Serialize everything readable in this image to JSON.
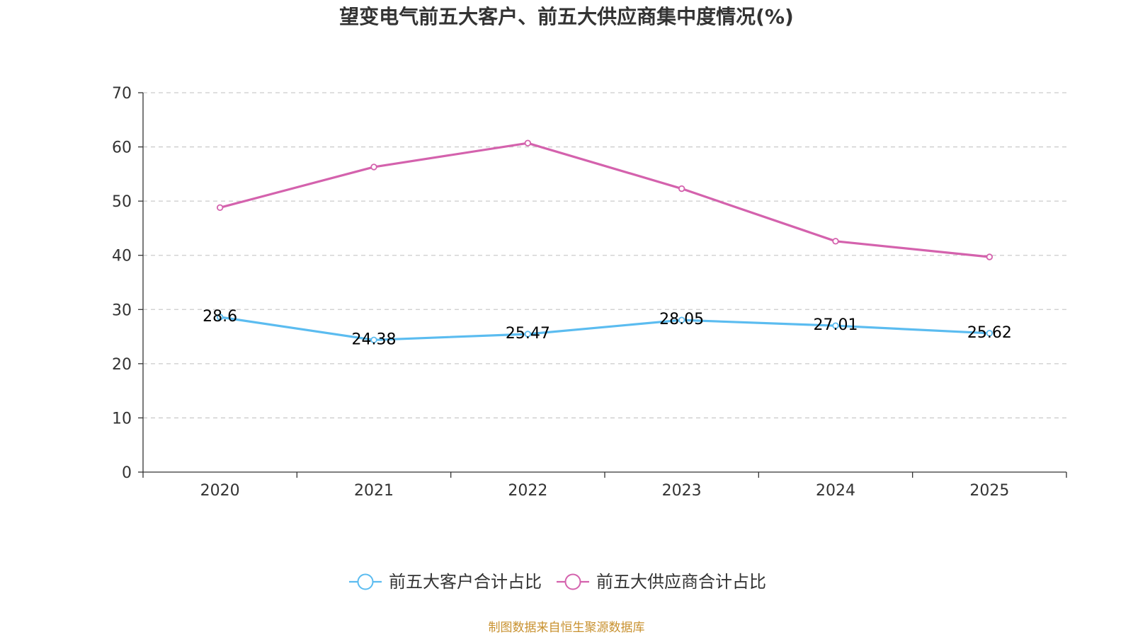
{
  "chart_data": {
    "type": "line",
    "title": "望变电气前五大客户、前五大供应商集中度情况(%)",
    "categories": [
      "2020",
      "2021",
      "2022",
      "2023",
      "2024",
      "2025"
    ],
    "ylim": [
      0,
      70
    ],
    "yticks": [
      "0",
      "10",
      "20",
      "30",
      "40",
      "50",
      "60",
      "70"
    ],
    "grid": true,
    "legend_position": "bottom-center",
    "series": [
      {
        "name": "前五大客户合计占比",
        "color": "#5bbcf0",
        "values": [
          28.6,
          24.38,
          25.47,
          28.05,
          27.01,
          25.62
        ],
        "data_labels": [
          "28.6",
          "24.38",
          "25.47",
          "28.05",
          "27.01",
          "25.62"
        ],
        "show_labels": true
      },
      {
        "name": "前五大供应商合计占比",
        "color": "#d462ad",
        "values": [
          48.8,
          56.3,
          60.7,
          52.3,
          42.6,
          39.7
        ],
        "show_labels": false
      }
    ],
    "source": "制图数据来自恒生聚源数据库"
  }
}
